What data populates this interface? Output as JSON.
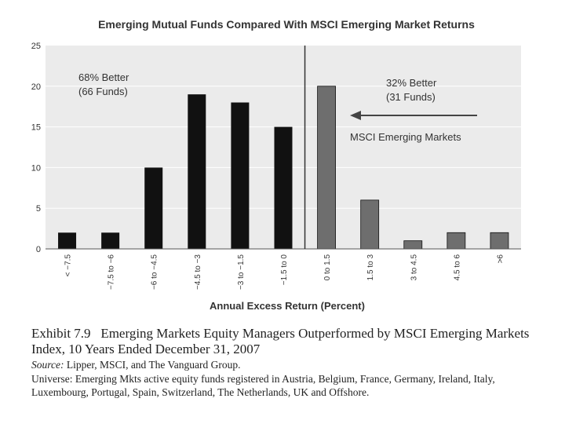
{
  "chart_data": {
    "type": "bar",
    "title": "Emerging Mutual Funds Compared With MSCI Emerging Market Returns",
    "xlabel": "Annual Excess Return (Percent)",
    "ylabel": "",
    "ylim": [
      0,
      25
    ],
    "yticks": [
      0,
      5,
      10,
      15,
      20,
      25
    ],
    "categories": [
      "< −7.5",
      "−7.5 to −6",
      "−6 to −4.5",
      "−4.5 to −3",
      "−3 to −1.5",
      "−1.5 to 0",
      "0 to 1.5",
      "1.5 to 3",
      "3 to 4.5",
      "4.5 to 6",
      ">6"
    ],
    "values": [
      2,
      2,
      10,
      19,
      18,
      15,
      20,
      6,
      1,
      2,
      2
    ],
    "groups": [
      "underperform",
      "underperform",
      "underperform",
      "underperform",
      "underperform",
      "underperform",
      "outperform",
      "outperform",
      "outperform",
      "outperform",
      "outperform"
    ],
    "colors": {
      "underperform": "#111111",
      "outperform": "#6e6e6e",
      "plot_bg": "#ebebeb",
      "grid": "#ffffff",
      "divider": "#333333"
    },
    "grid": true,
    "annotations": {
      "left_pct": "68% Better",
      "left_count": "(66 Funds)",
      "right_pct": "32% Better",
      "right_count": "(31 Funds)",
      "benchmark": "MSCI Emerging Markets"
    }
  },
  "caption": {
    "exhibit_label": "Exhibit 7.9",
    "exhibit_text": "Emerging Markets Equity Managers Outperformed by MSCI Emerging Markets Index, 10 Years Ended December 31, 2007",
    "source_label": "Source:",
    "source_text": "Lipper, MSCI, and The Vanguard Group.",
    "universe_label": "Universe:",
    "universe_text": "Emerging Mkts active equity funds registered in Austria, Belgium, France, Germany, Ireland, Italy, Luxembourg, Portugal, Spain, Switzerland, The Netherlands, UK and Offshore."
  }
}
